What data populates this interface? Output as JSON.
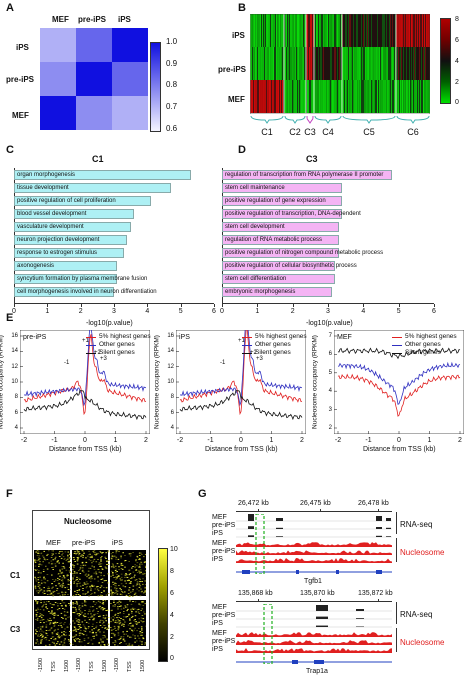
{
  "panels": {
    "A": "A",
    "B": "B",
    "C": "C",
    "D": "D",
    "E": "E",
    "F": "F",
    "G": "G"
  },
  "panel_a": {
    "cols": [
      "MEF",
      "pre-iPS",
      "iPS"
    ],
    "rows": [
      "iPS",
      "pre-iPS",
      "MEF"
    ],
    "matrix": [
      [
        0.72,
        0.85,
        1.0
      ],
      [
        0.78,
        1.0,
        0.85
      ],
      [
        1.0,
        0.78,
        0.72
      ]
    ],
    "colorbar_ticks": [
      "1.0",
      "0.9",
      "0.8",
      "0.7",
      "0.6"
    ],
    "colors": {
      "high": "#1010e0",
      "low": "#f2f2ff"
    }
  },
  "panel_b": {
    "rows": [
      "iPS",
      "pre-iPS",
      "MEF"
    ],
    "clusters": [
      "C1",
      "C2",
      "C3",
      "C4",
      "C5",
      "C6"
    ],
    "colorbar_ticks": [
      "8",
      "6",
      "4",
      "2",
      "0"
    ]
  },
  "panel_c": {
    "title": "C1",
    "xlabel": "-log10(p.value)",
    "xticks": [
      "0",
      "1",
      "2",
      "3",
      "4",
      "5",
      "6"
    ],
    "bar_color": "#aef0f4",
    "terms": [
      {
        "label": "organ morphogenesis",
        "value": 5.3
      },
      {
        "label": "tissue development",
        "value": 4.7
      },
      {
        "label": "positive regulation of cell proliferation",
        "value": 4.1
      },
      {
        "label": "blood vessel development",
        "value": 3.6
      },
      {
        "label": "vasculature development",
        "value": 3.5
      },
      {
        "label": "neuron projection development",
        "value": 3.4
      },
      {
        "label": "response to estrogen stimulus",
        "value": 3.3
      },
      {
        "label": "axonogenesis",
        "value": 3.1
      },
      {
        "label": "syncytium formation by plasma membrane fusion",
        "value": 3.1
      },
      {
        "label": "cell morphogenesis involved in neuron differentiation",
        "value": 3.0
      }
    ]
  },
  "panel_d": {
    "title": "C3",
    "xlabel": "-log10(p.value)",
    "xticks": [
      "0",
      "1",
      "2",
      "3",
      "4",
      "5",
      "6"
    ],
    "bar_color": "#f4b4f4",
    "terms": [
      {
        "label": "regulation of transcription from RNA polymerase II promoter",
        "value": 4.8
      },
      {
        "label": "stem cell maintenance",
        "value": 3.4
      },
      {
        "label": "positive regulation of gene expression",
        "value": 3.4
      },
      {
        "label": "positive regulation of transcription, DNA-dependent",
        "value": 3.4
      },
      {
        "label": "stem cell development",
        "value": 3.3
      },
      {
        "label": "regulation of RNA metabolic process",
        "value": 3.3
      },
      {
        "label": "positive regulation of nitrogen compound metabolic process",
        "value": 3.3
      },
      {
        "label": "positive regulation of cellular biosynthetic process",
        "value": 3.2
      },
      {
        "label": "stem cell differentiation",
        "value": 3.2
      },
      {
        "label": "embryonic morphogenesis",
        "value": 3.1
      }
    ]
  },
  "panel_e": {
    "ylabel": "Nucleosome occupancy (RPKM)",
    "xlabel": "Distance from TSS (kb)",
    "xticks": [
      "-2",
      "-1",
      "0",
      "1",
      "2"
    ],
    "legend": [
      "5% highest genes",
      "Other genes",
      "Silent genes"
    ],
    "colors": {
      "highest": "#e02020",
      "other": "#3030c0",
      "silent": "#111111"
    },
    "plots": [
      {
        "name": "pre-iPS",
        "yticks": [
          "4",
          "6",
          "8",
          "10",
          "12",
          "14",
          "16"
        ],
        "peaks": [
          "+1",
          "+2",
          "+3",
          "-1"
        ]
      },
      {
        "name": "iPS",
        "yticks": [
          "4",
          "6",
          "8",
          "10",
          "12",
          "14",
          "16"
        ],
        "peaks": [
          "+1",
          "+2",
          "+3",
          "-1"
        ]
      },
      {
        "name": "MEF",
        "yticks": [
          "2",
          "3",
          "4",
          "5",
          "6",
          "7"
        ],
        "peaks": []
      }
    ]
  },
  "panel_f": {
    "title": "Nucleosome",
    "cols": [
      "MEF",
      "pre-iPS",
      "iPS"
    ],
    "rows": [
      "C1",
      "C3"
    ],
    "xticks": [
      "-1500",
      "TSS",
      "1500"
    ],
    "colorbar_ticks": [
      "10",
      "8",
      "6",
      "4",
      "2",
      "0"
    ]
  },
  "panel_g": {
    "top": {
      "coords": [
        "26,472 kb",
        "26,475 kb",
        "26,478 kb"
      ],
      "rna_tracks": [
        "MEF",
        "pre-iPS",
        "iPS"
      ],
      "nuc_tracks": [
        "MEF",
        "pre-iPS",
        "iPS"
      ],
      "rna_label": "RNA-seq",
      "nuc_label": "Nucleosome",
      "gene": "Tgfb1"
    },
    "bottom": {
      "coords": [
        "135,868 kb",
        "135,870 kb",
        "135,872 kb"
      ],
      "rna_tracks": [
        "MEF",
        "pre-iPS",
        "iPS"
      ],
      "nuc_tracks": [
        "MEF",
        "pre-iPS",
        "iPS"
      ],
      "rna_label": "RNA-seq",
      "nuc_label": "Nucleosome",
      "gene": "Trap1a"
    }
  }
}
